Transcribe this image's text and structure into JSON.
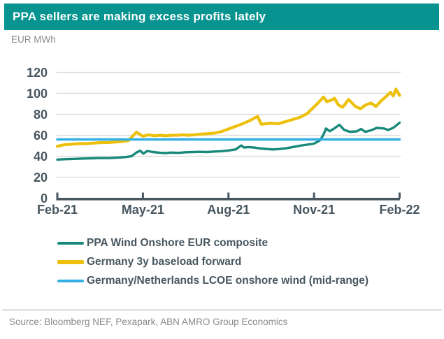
{
  "header": {
    "title": "PPA sellers are making excess profits lately",
    "bg_color": "#079390",
    "text_color": "#FFFFFF"
  },
  "chart_data": {
    "type": "line",
    "title": "PPA sellers are making excess profits lately",
    "units_label": "EUR MWh",
    "xlabel": "",
    "ylabel": "EUR MWh",
    "grid": true,
    "legend_position": "bottom-left",
    "x_axis": {
      "tick_labels": [
        "Feb-21",
        "May-21",
        "Aug-21",
        "Nov-21",
        "Feb-22"
      ],
      "tick_positions_months": [
        0,
        3,
        6,
        9,
        12
      ],
      "range_months": [
        0,
        12
      ]
    },
    "y_axis": {
      "ticks": [
        0,
        20,
        40,
        60,
        80,
        100,
        120
      ],
      "range": [
        0,
        120
      ]
    },
    "colors": {
      "axis": "#47565F",
      "grid": "#D9D9D9"
    },
    "series": [
      {
        "name": "PPA Wind Onshore EUR composite",
        "color": "#17897B",
        "x_months": [
          0,
          0.3,
          0.6,
          0.9,
          1.2,
          1.5,
          1.8,
          2.1,
          2.4,
          2.6,
          2.77,
          2.9,
          3.02,
          3.15,
          3.35,
          3.6,
          3.8,
          4.0,
          4.25,
          4.5,
          4.75,
          5.0,
          5.25,
          5.5,
          5.75,
          6.0,
          6.25,
          6.45,
          6.55,
          6.7,
          6.9,
          7.1,
          7.3,
          7.55,
          7.75,
          8.0,
          8.25,
          8.5,
          8.75,
          9.0,
          9.2,
          9.32,
          9.42,
          9.55,
          9.68,
          9.89,
          10.05,
          10.25,
          10.5,
          10.65,
          10.8,
          11.0,
          11.2,
          11.45,
          11.6,
          11.8,
          12.0
        ],
        "values": [
          36.8,
          37.2,
          37.5,
          37.8,
          38,
          38.3,
          38.2,
          38.6,
          39.2,
          40,
          43.5,
          45.3,
          42.5,
          45,
          44,
          43.3,
          43,
          43.5,
          43.2,
          43.8,
          44,
          44.2,
          44,
          44.5,
          44.8,
          45.5,
          46.5,
          50.3,
          48.3,
          48.7,
          48.3,
          47.5,
          47,
          46.5,
          46.8,
          47.5,
          48.7,
          50,
          51,
          52,
          55,
          60,
          66.4,
          63.8,
          66,
          69.9,
          65.3,
          63.3,
          63.7,
          66,
          63.3,
          64.7,
          67,
          66.5,
          65,
          67.5,
          72
        ]
      },
      {
        "name": "Germany 3y baseload forward",
        "color": "#EDC00C",
        "x_months": [
          0,
          0.25,
          0.5,
          0.75,
          1,
          1.25,
          1.5,
          1.75,
          2,
          2.25,
          2.5,
          2.77,
          3.0,
          3.2,
          3.4,
          3.6,
          3.8,
          4.0,
          4.2,
          4.4,
          4.6,
          4.8,
          5.0,
          5.25,
          5.5,
          5.75,
          6.0,
          6.25,
          6.5,
          6.75,
          7.02,
          7.15,
          7.3,
          7.5,
          7.75,
          8.0,
          8.25,
          8.5,
          8.75,
          9.0,
          9.15,
          9.33,
          9.45,
          9.6,
          9.72,
          9.85,
          10.0,
          10.1,
          10.21,
          10.45,
          10.63,
          10.8,
          11.0,
          11.17,
          11.36,
          11.55,
          11.68,
          11.78,
          11.87,
          12.0
        ],
        "values": [
          49.5,
          51,
          51.5,
          52,
          52,
          52.5,
          53,
          53,
          53.5,
          54,
          55,
          63,
          59,
          60.5,
          59.5,
          60,
          59.5,
          60,
          60,
          60.5,
          60,
          60.5,
          61,
          61.5,
          62,
          63.5,
          66,
          68.5,
          71,
          74,
          78,
          70.5,
          71,
          71.5,
          71,
          73,
          75,
          77,
          80.5,
          87,
          91,
          96.5,
          92,
          93.5,
          95.3,
          89,
          86.7,
          90,
          94.2,
          87.5,
          85.3,
          88.7,
          90.7,
          87.5,
          93,
          97.5,
          101,
          97.5,
          104,
          98
        ]
      },
      {
        "name": "Germany/Netherlands LCOE onshore wind (mid-range)",
        "color": "#33AFE3",
        "x_months": [
          0,
          12
        ],
        "values": [
          56,
          56
        ]
      }
    ]
  },
  "footer": {
    "source": "Source: Bloomberg NEF, Pexapark, ABN AMRO Group Economics"
  }
}
